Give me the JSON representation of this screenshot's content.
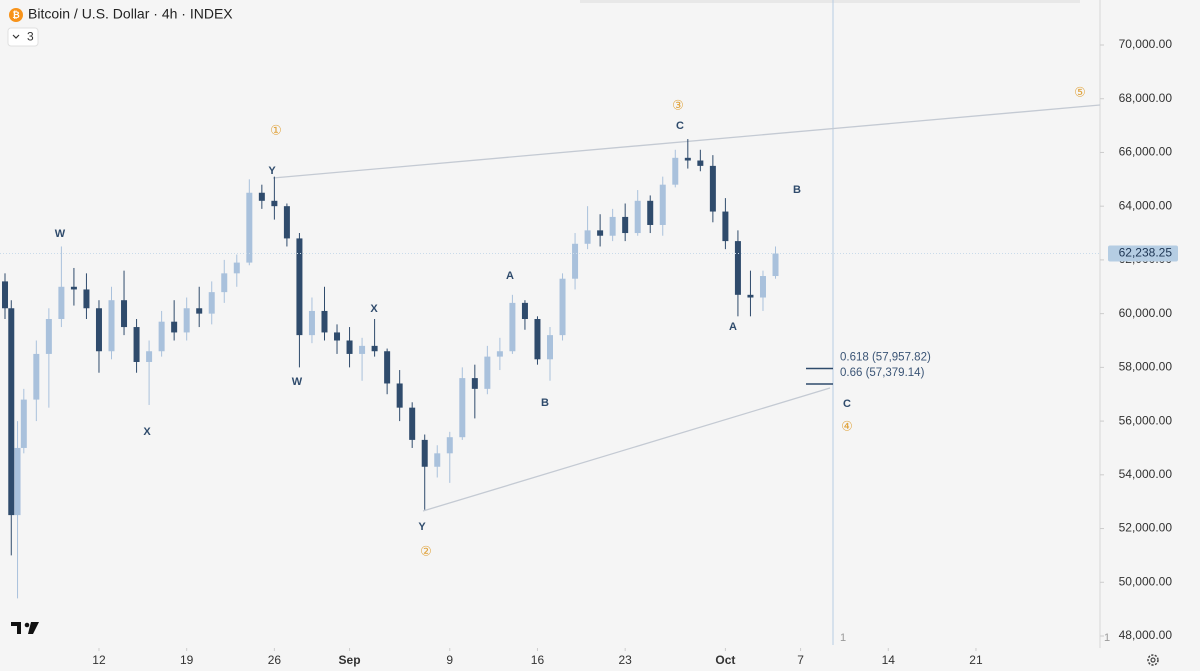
{
  "chart_data": {
    "type": "candlestick",
    "title": "Bitcoin / U.S. Dollar · 4h · INDEX",
    "indicator_count": "3",
    "up_color": "#a9c1dc",
    "down_color": "#2f4b6c",
    "x": [
      4.5,
      5,
      5.5,
      6,
      7,
      8,
      9,
      10,
      11,
      12,
      13,
      14,
      15,
      16,
      17,
      18,
      19,
      20,
      21,
      22,
      23,
      24,
      25,
      26,
      27,
      28,
      29,
      30,
      31,
      32,
      33,
      34,
      35,
      36,
      37,
      38,
      39,
      40,
      41,
      42,
      43,
      44,
      45,
      46,
      47,
      48,
      49,
      50,
      51,
      52,
      53,
      54,
      55,
      56,
      57,
      58,
      59,
      60,
      61,
      62,
      63,
      64,
      65,
      66
    ],
    "candles": [
      [
        61200,
        61500,
        59800,
        60200
      ],
      [
        60200,
        60500,
        51000,
        52500
      ],
      [
        52500,
        56000,
        49400,
        55000
      ],
      [
        55000,
        57200,
        54800,
        56800
      ],
      [
        56800,
        59000,
        56000,
        58500
      ],
      [
        58500,
        60200,
        56500,
        59800
      ],
      [
        59800,
        62500,
        59500,
        61000
      ],
      [
        61000,
        61700,
        60300,
        60900
      ],
      [
        60900,
        61500,
        59800,
        60200
      ],
      [
        60200,
        60500,
        57800,
        58600
      ],
      [
        58600,
        61000,
        58300,
        60500
      ],
      [
        60500,
        61600,
        59200,
        59500
      ],
      [
        59500,
        59800,
        57800,
        58200
      ],
      [
        58200,
        59000,
        56600,
        58600
      ],
      [
        58600,
        60100,
        58400,
        59700
      ],
      [
        59700,
        60500,
        59000,
        59300
      ],
      [
        59300,
        60600,
        59000,
        60200
      ],
      [
        60200,
        61000,
        59500,
        60000
      ],
      [
        60000,
        61200,
        59600,
        60800
      ],
      [
        60800,
        62000,
        60400,
        61500
      ],
      [
        61500,
        62200,
        61000,
        61900
      ],
      [
        61900,
        65000,
        61800,
        64500
      ],
      [
        64500,
        64800,
        63900,
        64200
      ],
      [
        64200,
        65100,
        63500,
        64000
      ],
      [
        64000,
        64100,
        62500,
        62800
      ],
      [
        62800,
        63000,
        58000,
        59200
      ],
      [
        59200,
        60600,
        58900,
        60100
      ],
      [
        60100,
        61000,
        59000,
        59300
      ],
      [
        59300,
        59600,
        58500,
        59000
      ],
      [
        59000,
        59500,
        58000,
        58500
      ],
      [
        58500,
        59100,
        57500,
        58800
      ],
      [
        58800,
        59800,
        58400,
        58600
      ],
      [
        58600,
        58700,
        57000,
        57400
      ],
      [
        57400,
        57900,
        56000,
        56500
      ],
      [
        56500,
        56700,
        55000,
        55300
      ],
      [
        55300,
        55500,
        52700,
        54300
      ],
      [
        54300,
        55100,
        53900,
        54800
      ],
      [
        54800,
        55600,
        53700,
        55400
      ],
      [
        55400,
        58000,
        55300,
        57600
      ],
      [
        57600,
        58100,
        56100,
        57200
      ],
      [
        57200,
        58800,
        57000,
        58400
      ],
      [
        58400,
        59100,
        57900,
        58600
      ],
      [
        58600,
        60700,
        58500,
        60400
      ],
      [
        60400,
        60500,
        59400,
        59800
      ],
      [
        59800,
        59900,
        58100,
        58300
      ],
      [
        58300,
        59500,
        57500,
        59200
      ],
      [
        59200,
        61500,
        59000,
        61300
      ],
      [
        61300,
        63000,
        60900,
        62600
      ],
      [
        62600,
        64000,
        62400,
        63100
      ],
      [
        63100,
        63700,
        62500,
        62900
      ],
      [
        62900,
        63900,
        62700,
        63600
      ],
      [
        63600,
        64100,
        62700,
        63000
      ],
      [
        63000,
        64600,
        62900,
        64200
      ],
      [
        64200,
        64400,
        63000,
        63300
      ],
      [
        63300,
        65100,
        62900,
        64800
      ],
      [
        64800,
        66100,
        64700,
        65800
      ],
      [
        65800,
        66500,
        65400,
        65700
      ],
      [
        65700,
        66100,
        65300,
        65500
      ],
      [
        65500,
        65900,
        63400,
        63800
      ],
      [
        63800,
        64300,
        62400,
        62700
      ],
      [
        62700,
        63100,
        59900,
        60700
      ],
      [
        60700,
        61600,
        59900,
        60600
      ],
      [
        60600,
        61600,
        60100,
        61400
      ],
      [
        61400,
        62500,
        61300,
        62238.25
      ]
    ],
    "last_price": {
      "value": 62238.25,
      "label": "62,238.25"
    },
    "xlim": [
      4.1,
      91.9
    ],
    "ylim": [
      47553,
      71675
    ],
    "xticks": [
      {
        "value": 12,
        "label": "12"
      },
      {
        "value": 19,
        "label": "19"
      },
      {
        "value": 26,
        "label": "26"
      },
      {
        "value": 32,
        "label": "Sep"
      },
      {
        "value": 40,
        "label": "9"
      },
      {
        "value": 47,
        "label": "16"
      },
      {
        "value": 54,
        "label": "23"
      },
      {
        "value": 62,
        "label": "Oct"
      },
      {
        "value": 68,
        "label": "7"
      },
      {
        "value": 75,
        "label": "14"
      },
      {
        "value": 82,
        "label": "21"
      }
    ],
    "yticks": [
      {
        "value": 48000,
        "label": "48,000.00"
      },
      {
        "value": 50000,
        "label": "50,000.00"
      },
      {
        "value": 52000,
        "label": "52,000.00"
      },
      {
        "value": 54000,
        "label": "54,000.00"
      },
      {
        "value": 56000,
        "label": "56,000.00"
      },
      {
        "value": 58000,
        "label": "58,000.00"
      },
      {
        "value": 60000,
        "label": "60,000.00"
      },
      {
        "value": 62000,
        "label": "62,000.00"
      },
      {
        "value": 64000,
        "label": "64,000.00"
      },
      {
        "value": 66000,
        "label": "66,000.00"
      },
      {
        "value": 68000,
        "label": "68,000.00"
      },
      {
        "value": 70000,
        "label": "70,000.00"
      }
    ],
    "fib_levels": [
      {
        "value": 57957.82,
        "label": "0.618 (57,957.82)"
      },
      {
        "value": 57379.14,
        "label": "0.66 (57,379.14)"
      }
    ],
    "annotations": [
      "W",
      "X",
      "Y",
      "①",
      "W",
      "X",
      "Y",
      "②",
      "A",
      "B",
      "C",
      "③",
      "A",
      "B",
      "C",
      "④",
      "⑤"
    ],
    "pane_labels": [
      "1",
      "1"
    ]
  }
}
